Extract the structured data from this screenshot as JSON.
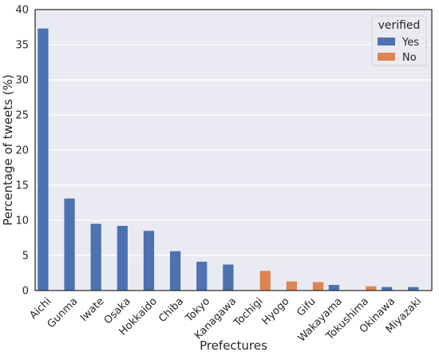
{
  "chart_data": {
    "type": "bar",
    "title": "",
    "xlabel": "Prefectures",
    "ylabel": "Percentage of tweets (%)",
    "ylim": [
      0,
      40
    ],
    "yticks": [
      0,
      5,
      10,
      15,
      20,
      25,
      30,
      35,
      40
    ],
    "grid": "horizontal",
    "legend_placement": "top-right",
    "legend_title": "verified",
    "categories": [
      "Aichi",
      "Gunma",
      "Iwate",
      "Osaka",
      "Hokkaido",
      "Chiba",
      "Tokyo",
      "Kanagawa",
      "Tochigi",
      "Hyogo",
      "Gifu",
      "Wakayama",
      "Tokushima",
      "Okinawa",
      "Miyazaki"
    ],
    "series": [
      {
        "name": "Yes",
        "color": "#4c72b0",
        "values": [
          37.3,
          13.1,
          9.5,
          9.2,
          8.5,
          5.6,
          4.1,
          3.7,
          null,
          null,
          null,
          0.8,
          null,
          0.5,
          0.5
        ]
      },
      {
        "name": "No",
        "color": "#dd8452",
        "values": [
          null,
          null,
          null,
          null,
          null,
          null,
          null,
          null,
          2.8,
          1.3,
          1.2,
          null,
          0.6,
          null,
          null
        ]
      }
    ]
  },
  "colors": {
    "plot_background": "#eaeaf2",
    "grid": "#ffffff",
    "axis_frame": "#262626"
  }
}
